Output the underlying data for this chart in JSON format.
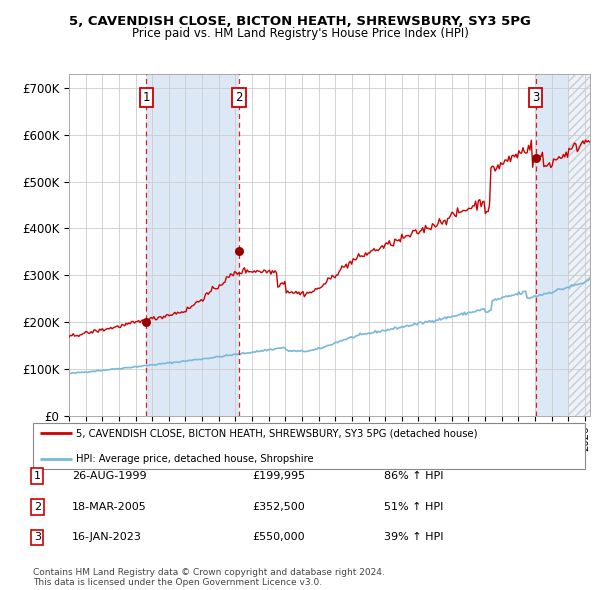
{
  "title1": "5, CAVENDISH CLOSE, BICTON HEATH, SHREWSBURY, SY3 5PG",
  "title2": "Price paid vs. HM Land Registry's House Price Index (HPI)",
  "ylabel_ticks": [
    "£0",
    "£100K",
    "£200K",
    "£300K",
    "£400K",
    "£500K",
    "£600K",
    "£700K"
  ],
  "ytick_values": [
    0,
    100000,
    200000,
    300000,
    400000,
    500000,
    600000,
    700000
  ],
  "ylim": [
    0,
    730000
  ],
  "xlim_start": 1995.0,
  "xlim_end": 2026.3,
  "transactions": [
    {
      "num": 1,
      "date": "26-AUG-1999",
      "price": 199995,
      "pct": "86%",
      "dir": "↑",
      "year": 1999.65
    },
    {
      "num": 2,
      "date": "18-MAR-2005",
      "price": 352500,
      "pct": "51%",
      "dir": "↑",
      "year": 2005.21
    },
    {
      "num": 3,
      "date": "16-JAN-2023",
      "price": 550000,
      "pct": "39%",
      "dir": "↑",
      "year": 2023.04
    }
  ],
  "legend_line1": "5, CAVENDISH CLOSE, BICTON HEATH, SHREWSBURY, SY3 5PG (detached house)",
  "legend_line2": "HPI: Average price, detached house, Shropshire",
  "footnote1": "Contains HM Land Registry data © Crown copyright and database right 2024.",
  "footnote2": "This data is licensed under the Open Government Licence v3.0.",
  "hpi_color": "#7ab8d9",
  "price_color": "#cc0000",
  "bg_highlight_color": "#dce8f5",
  "grid_color": "#cccccc",
  "hatch_start": 2025.0
}
